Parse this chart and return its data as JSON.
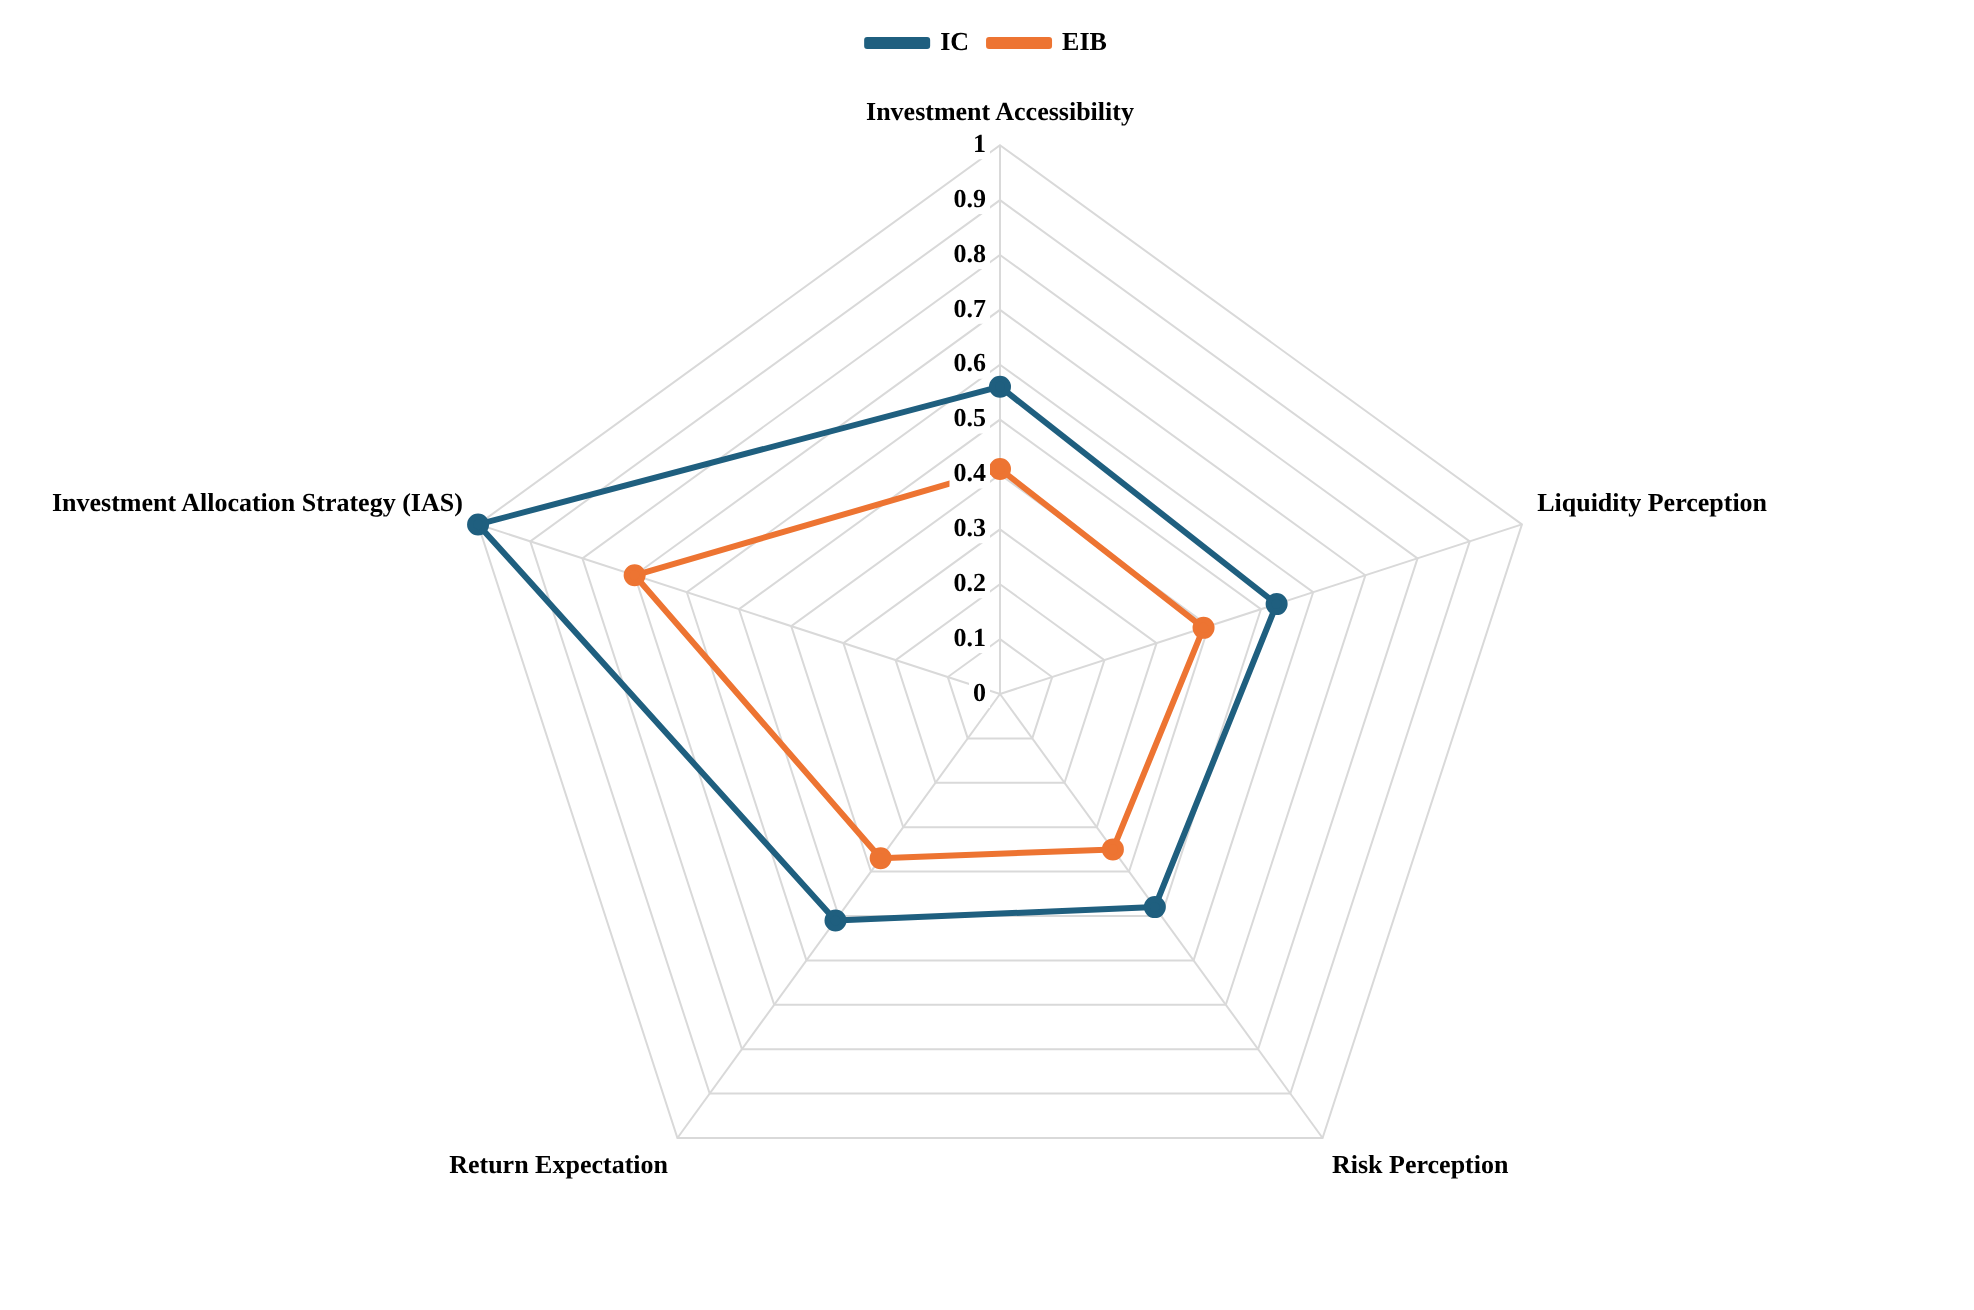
{
  "chart_data": {
    "type": "radar",
    "categories": [
      "Investment Accessibility",
      "Liquidity Perception",
      "Risk Perception",
      "Return Expectation",
      "Investment Allocation Strategy (IAS)"
    ],
    "series": [
      {
        "name": "IC",
        "color": "#1f5f7f",
        "values": [
          0.56,
          0.53,
          0.48,
          0.51,
          1.0
        ]
      },
      {
        "name": "EIB",
        "color": "#ed7432",
        "values": [
          0.41,
          0.39,
          0.35,
          0.37,
          0.7
        ]
      }
    ],
    "ylim": [
      0,
      1
    ],
    "yticks": [
      0,
      0.1,
      0.2,
      0.3,
      0.4,
      0.5,
      0.6,
      0.7,
      0.8,
      0.9,
      1
    ],
    "grid": true,
    "legend": "top",
    "marker": "circle",
    "line_style": "solid"
  }
}
